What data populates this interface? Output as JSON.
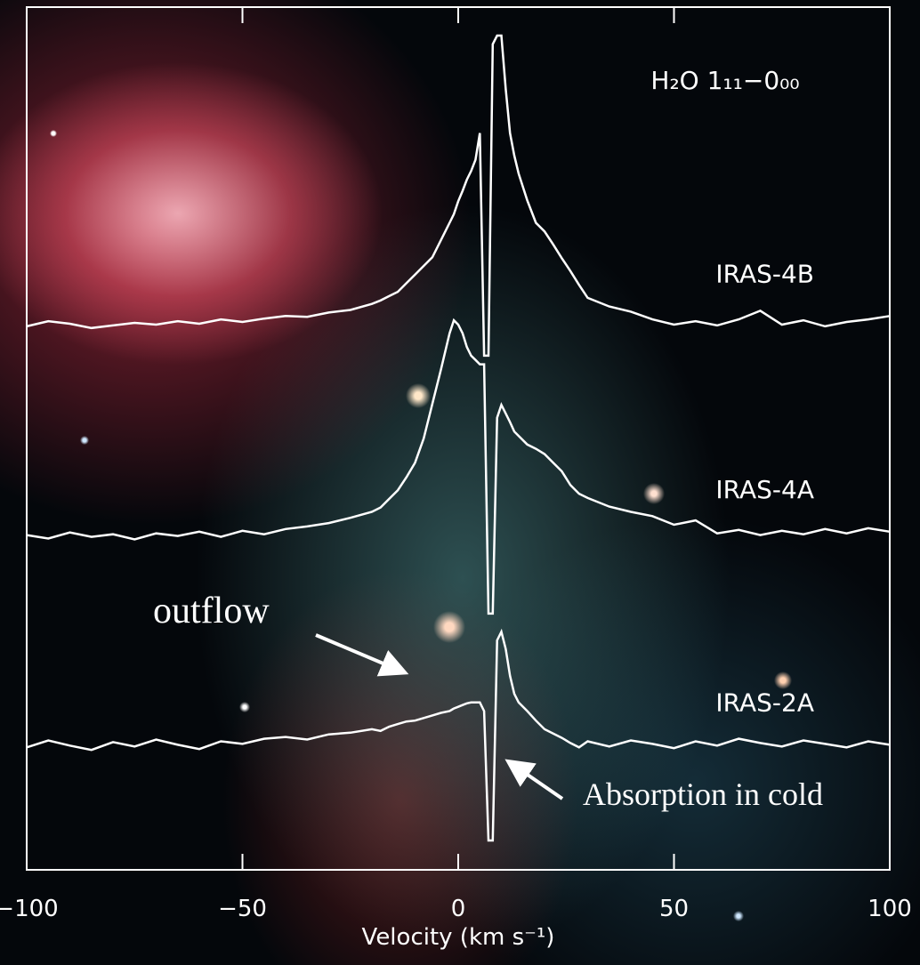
{
  "chart_data": {
    "type": "line",
    "title": "H₂O 1₁₁−0₀₀",
    "x_label": "Velocity (km s⁻¹)",
    "annotations": [
      "outflow",
      "Absorption in cold"
    ],
    "x": [
      -100,
      -95,
      -90,
      -85,
      -80,
      -75,
      -70,
      -65,
      -60,
      -55,
      -50,
      -45,
      -40,
      -35,
      -30,
      -25,
      -20,
      -18,
      -16,
      -14,
      -12,
      -10,
      -8,
      -6,
      -4,
      -2,
      -1,
      0,
      1,
      2,
      3,
      4,
      5,
      6,
      7,
      8,
      9,
      10,
      11,
      12,
      13,
      14,
      16,
      18,
      20,
      22,
      24,
      26,
      28,
      30,
      35,
      40,
      45,
      50,
      55,
      60,
      65,
      70,
      75,
      80,
      85,
      90,
      95,
      100
    ],
    "series": [
      {
        "name": "IRAS-4B",
        "color": "#ffffff",
        "values": [
          63,
          63.6,
          63.3,
          62.8,
          63.1,
          63.4,
          63.2,
          63.6,
          63.3,
          63.8,
          63.5,
          63.9,
          64.2,
          64.1,
          64.6,
          64.9,
          65.6,
          66,
          66.5,
          67,
          68,
          69,
          70,
          71,
          73,
          75,
          76,
          77.5,
          78.7,
          80,
          81,
          82.3,
          85.4,
          59.6,
          59.6,
          95.7,
          96.7,
          96.7,
          90.5,
          85.4,
          82.8,
          80.7,
          77.6,
          75,
          74,
          72.5,
          70.9,
          69.4,
          67.8,
          66.3,
          65.3,
          64.7,
          63.8,
          63.2,
          63.6,
          63.1,
          63.8,
          64.8,
          63.2,
          63.7,
          63,
          63.5,
          63.8,
          64.2
        ]
      },
      {
        "name": "IRAS-4A",
        "color": "#ffffff",
        "values": [
          38.8,
          38.4,
          39.1,
          38.6,
          38.9,
          38.3,
          39,
          38.7,
          39.2,
          38.6,
          39.3,
          38.9,
          39.5,
          39.8,
          40.2,
          40.8,
          41.5,
          42,
          43,
          44,
          45.5,
          47.2,
          50,
          54,
          58,
          62.2,
          63.7,
          63.2,
          62.2,
          60.6,
          59.6,
          59.1,
          58.6,
          58.6,
          29.7,
          29.7,
          52.4,
          53.9,
          52.9,
          51.9,
          50.8,
          50.3,
          49.3,
          48.8,
          48.2,
          47.2,
          46.2,
          44.6,
          43.6,
          43.1,
          42.1,
          41.5,
          41,
          40,
          40.5,
          39,
          39.4,
          38.8,
          39.3,
          38.9,
          39.5,
          39,
          39.6,
          39.2
        ]
      },
      {
        "name": "IRAS-2A",
        "color": "#ffffff",
        "values": [
          14.2,
          15,
          14.4,
          13.9,
          14.8,
          14.3,
          15.1,
          14.5,
          14,
          14.9,
          14.6,
          15.2,
          15.4,
          15.1,
          15.7,
          15.9,
          16.3,
          16.1,
          16.6,
          16.9,
          17.2,
          17.3,
          17.6,
          17.9,
          18.2,
          18.4,
          18.7,
          18.9,
          19.1,
          19.3,
          19.4,
          19.4,
          19.4,
          18.4,
          3.4,
          3.4,
          26.6,
          27.6,
          25.6,
          22.5,
          20.4,
          19.4,
          18.4,
          17.3,
          16.3,
          15.8,
          15.3,
          14.7,
          14.2,
          14.9,
          14.3,
          15,
          14.6,
          14.1,
          14.9,
          14.4,
          15.2,
          14.7,
          14.3,
          15,
          14.6,
          14.2,
          14.9,
          14.5
        ]
      }
    ],
    "xlim": [
      -100,
      100
    ],
    "xticks": [
      {
        "value": -100,
        "label": "−100"
      },
      {
        "value": -50,
        "label": "−50"
      },
      0,
      50,
      100
    ],
    "ylim": [
      0,
      100
    ]
  }
}
